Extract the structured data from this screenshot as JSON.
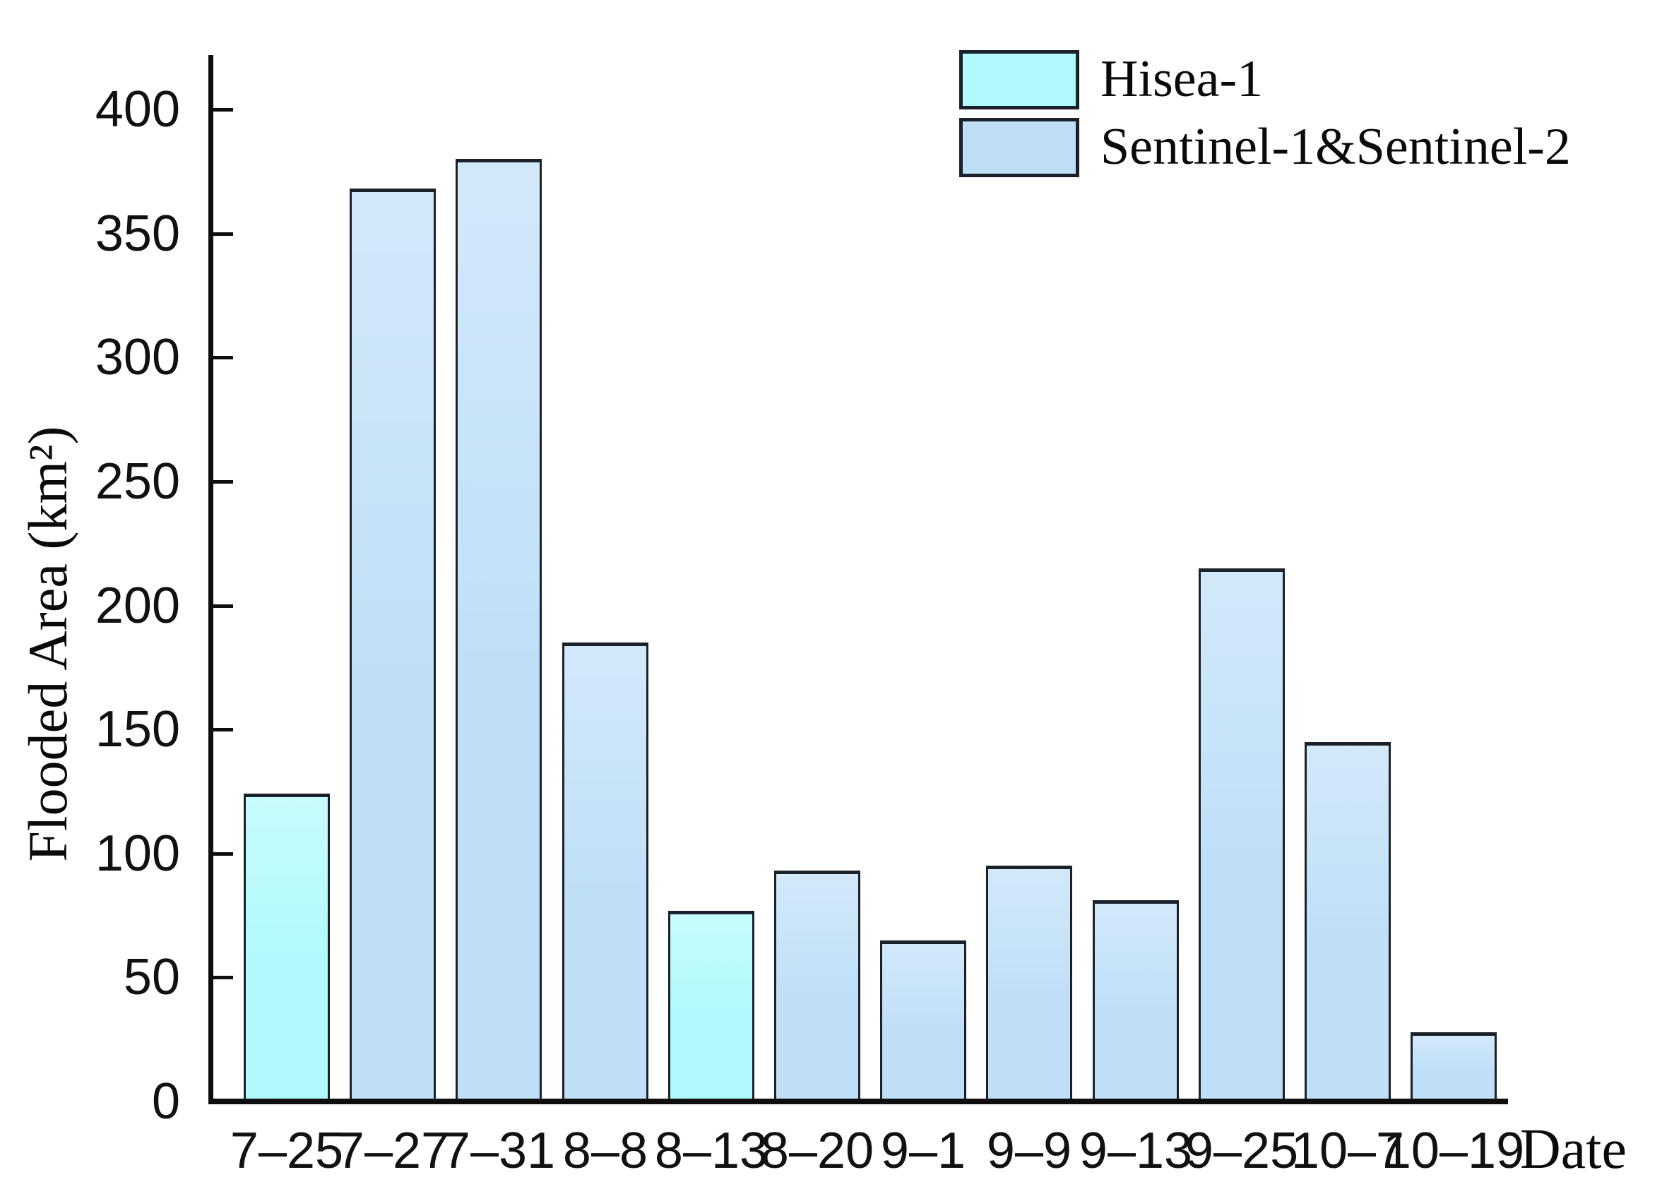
{
  "chart_data": {
    "type": "bar",
    "title": "",
    "xlabel": "Date",
    "ylabel": "Flooded Area (km²)",
    "ylim": [
      0,
      420
    ],
    "yticks": [
      0,
      50,
      100,
      150,
      200,
      250,
      300,
      350,
      400
    ],
    "grid": false,
    "legend_position": "top-right",
    "legend": [
      {
        "label": "Hisea-1",
        "color": "#b0fafb"
      },
      {
        "label": "Sentinel-1&Sentinel-2",
        "color": "#bfdff7"
      }
    ],
    "categories": [
      "7–25",
      "7–27",
      "7–31",
      "8–8",
      "8–13",
      "8–20",
      "9–1",
      "9–9",
      "9–13",
      "9–25",
      "10–7",
      "10–19"
    ],
    "bars": [
      {
        "date": "7–25",
        "value": 124,
        "series_index": 0,
        "series": "Hisea-1"
      },
      {
        "date": "7–27",
        "value": 368,
        "series_index": 1,
        "series": "Sentinel-1&Sentinel-2"
      },
      {
        "date": "7–31",
        "value": 380,
        "series_index": 1,
        "series": "Sentinel-1&Sentinel-2"
      },
      {
        "date": "8–8",
        "value": 185,
        "series_index": 1,
        "series": "Sentinel-1&Sentinel-2"
      },
      {
        "date": "8–13",
        "value": 77,
        "series_index": 0,
        "series": "Hisea-1"
      },
      {
        "date": "8–20",
        "value": 93,
        "series_index": 1,
        "series": "Sentinel-1&Sentinel-2"
      },
      {
        "date": "9–1",
        "value": 65,
        "series_index": 1,
        "series": "Sentinel-1&Sentinel-2"
      },
      {
        "date": "9–9",
        "value": 95,
        "series_index": 1,
        "series": "Sentinel-1&Sentinel-2"
      },
      {
        "date": "9–13",
        "value": 81,
        "series_index": 1,
        "series": "Sentinel-1&Sentinel-2"
      },
      {
        "date": "9–25",
        "value": 215,
        "series_index": 1,
        "series": "Sentinel-1&Sentinel-2"
      },
      {
        "date": "10–7",
        "value": 145,
        "series_index": 1,
        "series": "Sentinel-1&Sentinel-2"
      },
      {
        "date": "10–19",
        "value": 28,
        "series_index": 1,
        "series": "Sentinel-1&Sentinel-2"
      }
    ],
    "axis_color": "#0e0e0e",
    "bar_border_color": "#1b212b"
  }
}
